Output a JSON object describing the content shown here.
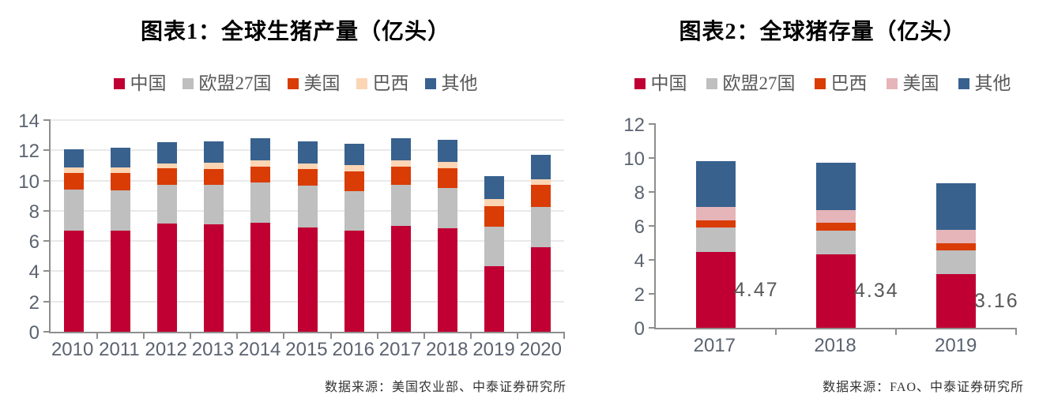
{
  "page": {
    "background_color": "#ffffff"
  },
  "chart_data": [
    {
      "type": "bar",
      "stacked": true,
      "title": "图表1：全球生猪产量（亿头）",
      "source_note": "数据来源：美国农业部、中泰证券研究所",
      "categories": [
        "2010",
        "2011",
        "2012",
        "2013",
        "2014",
        "2015",
        "2016",
        "2017",
        "2018",
        "2019",
        "2020"
      ],
      "series": [
        {
          "name": "中国",
          "color": "#C00032",
          "values": [
            6.7,
            6.7,
            7.15,
            7.1,
            7.2,
            6.9,
            6.7,
            7.0,
            6.85,
            4.35,
            5.6
          ]
        },
        {
          "name": "欧盟27国",
          "color": "#BFBFBF",
          "values": [
            2.7,
            2.65,
            2.55,
            2.6,
            2.65,
            2.75,
            2.6,
            2.7,
            2.65,
            2.6,
            2.65
          ]
        },
        {
          "name": "美国",
          "color": "#D93C04",
          "values": [
            1.1,
            1.15,
            1.1,
            1.05,
            1.05,
            1.1,
            1.3,
            1.2,
            1.3,
            1.35,
            1.45
          ]
        },
        {
          "name": "巴西",
          "color": "#FBD5B4",
          "values": [
            0.35,
            0.35,
            0.35,
            0.45,
            0.45,
            0.4,
            0.45,
            0.45,
            0.45,
            0.5,
            0.4
          ]
        },
        {
          "name": "其他",
          "color": "#38618E",
          "values": [
            1.2,
            1.3,
            1.4,
            1.4,
            1.45,
            1.45,
            1.4,
            1.45,
            1.45,
            1.5,
            1.6
          ]
        }
      ],
      "xlabel": "",
      "ylabel": "",
      "ylim": [
        0,
        14
      ],
      "ytick_step": 2,
      "gridlines": true,
      "legend_position": "top"
    },
    {
      "type": "bar",
      "stacked": true,
      "title": "图表2：全球猪存量（亿头）",
      "source_note": "数据来源：FAO、中泰证券研究所",
      "categories": [
        "2017",
        "2018",
        "2019"
      ],
      "series": [
        {
          "name": "中国",
          "color": "#C00032",
          "values": [
            4.47,
            4.34,
            3.16
          ]
        },
        {
          "name": "欧盟27国",
          "color": "#BFBFBF",
          "values": [
            1.45,
            1.4,
            1.42
          ]
        },
        {
          "name": "巴西",
          "color": "#D93C04",
          "values": [
            0.43,
            0.45,
            0.4
          ]
        },
        {
          "name": "美国",
          "color": "#E6B5B9",
          "values": [
            0.75,
            0.76,
            0.8
          ]
        },
        {
          "name": "其他",
          "color": "#38618E",
          "values": [
            2.7,
            2.75,
            2.72
          ]
        }
      ],
      "bar_labels": [
        "4.47",
        "4.34",
        "3.16"
      ],
      "bar_labels_series": "中国",
      "xlabel": "",
      "ylabel": "",
      "ylim": [
        0,
        12
      ],
      "ytick_step": 2,
      "gridlines": false,
      "legend_position": "top"
    }
  ]
}
